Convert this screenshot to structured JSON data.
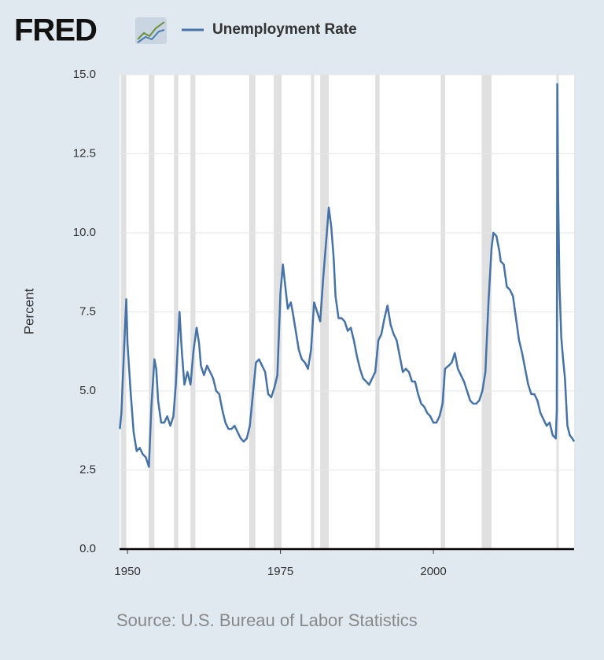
{
  "chart_data": {
    "type": "line",
    "logo": "FRED",
    "y_label": "Percent",
    "source": "Source: U.S. Bureau of Labor Statistics",
    "series": [
      {
        "name": "Unemployment Rate",
        "color": "#4572a7",
        "x": [
          1948.75,
          1949.0,
          1949.5,
          1949.8,
          1950.0,
          1950.5,
          1951.0,
          1951.5,
          1952.0,
          1952.5,
          1953.0,
          1953.5,
          1953.9,
          1954.4,
          1954.7,
          1955.0,
          1955.5,
          1956.0,
          1956.5,
          1957.0,
          1957.5,
          1957.9,
          1958.5,
          1958.9,
          1959.3,
          1959.8,
          1960.3,
          1960.8,
          1961.3,
          1961.7,
          1962.0,
          1962.5,
          1963.0,
          1963.5,
          1964.0,
          1964.5,
          1965.0,
          1965.5,
          1966.0,
          1966.5,
          1967.0,
          1967.5,
          1968.0,
          1968.5,
          1969.0,
          1969.5,
          1970.0,
          1970.5,
          1971.0,
          1971.5,
          1972.0,
          1972.5,
          1973.0,
          1973.5,
          1974.0,
          1974.5,
          1975.0,
          1975.4,
          1975.8,
          1976.2,
          1976.7,
          1977.0,
          1977.5,
          1978.0,
          1978.5,
          1979.0,
          1979.5,
          1980.0,
          1980.5,
          1981.0,
          1981.5,
          1982.0,
          1982.5,
          1982.9,
          1983.3,
          1983.7,
          1984.0,
          1984.5,
          1985.0,
          1985.5,
          1986.0,
          1986.5,
          1987.0,
          1987.5,
          1988.0,
          1988.5,
          1989.0,
          1989.5,
          1990.0,
          1990.5,
          1991.0,
          1991.5,
          1992.0,
          1992.5,
          1993.0,
          1993.5,
          1994.0,
          1994.5,
          1995.0,
          1995.5,
          1996.0,
          1996.5,
          1997.0,
          1997.5,
          1998.0,
          1998.5,
          1999.0,
          1999.5,
          2000.0,
          2000.5,
          2001.0,
          2001.5,
          2001.9,
          2002.5,
          2003.0,
          2003.5,
          2004.0,
          2004.5,
          2005.0,
          2005.5,
          2006.0,
          2006.5,
          2007.0,
          2007.5,
          2008.0,
          2008.5,
          2009.0,
          2009.5,
          2009.8,
          2010.3,
          2010.8,
          2011.0,
          2011.5,
          2012.0,
          2012.5,
          2013.0,
          2013.5,
          2014.0,
          2014.5,
          2015.0,
          2015.5,
          2016.0,
          2016.5,
          2017.0,
          2017.5,
          2018.0,
          2018.5,
          2019.0,
          2019.5,
          2020.0,
          2020.17,
          2020.25,
          2020.4,
          2020.6,
          2020.9,
          2021.2,
          2021.5,
          2021.9,
          2022.3,
          2022.7,
          2023.0
        ],
        "values": [
          3.8,
          4.3,
          6.6,
          7.9,
          6.5,
          5.0,
          3.7,
          3.1,
          3.2,
          3.0,
          2.9,
          2.6,
          4.5,
          6.0,
          5.7,
          4.7,
          4.0,
          4.0,
          4.2,
          3.9,
          4.2,
          5.2,
          7.5,
          6.2,
          5.2,
          5.6,
          5.2,
          6.3,
          7.0,
          6.5,
          5.8,
          5.5,
          5.8,
          5.6,
          5.4,
          5.0,
          4.9,
          4.4,
          4.0,
          3.8,
          3.8,
          3.9,
          3.7,
          3.5,
          3.4,
          3.5,
          3.9,
          4.9,
          5.9,
          6.0,
          5.8,
          5.6,
          4.9,
          4.8,
          5.1,
          5.5,
          8.1,
          9.0,
          8.3,
          7.6,
          7.8,
          7.5,
          6.9,
          6.3,
          6.0,
          5.9,
          5.7,
          6.3,
          7.8,
          7.5,
          7.2,
          8.6,
          9.8,
          10.8,
          10.2,
          9.2,
          8.0,
          7.3,
          7.3,
          7.2,
          6.9,
          7.0,
          6.6,
          6.1,
          5.7,
          5.4,
          5.3,
          5.2,
          5.4,
          5.6,
          6.6,
          6.8,
          7.3,
          7.7,
          7.1,
          6.8,
          6.6,
          6.1,
          5.6,
          5.7,
          5.6,
          5.3,
          5.3,
          4.9,
          4.6,
          4.5,
          4.3,
          4.2,
          4.0,
          4.0,
          4.2,
          4.6,
          5.7,
          5.8,
          5.9,
          6.2,
          5.7,
          5.5,
          5.3,
          5.0,
          4.7,
          4.6,
          4.6,
          4.7,
          5.0,
          5.6,
          7.8,
          9.5,
          10.0,
          9.9,
          9.4,
          9.1,
          9.0,
          8.3,
          8.2,
          8.0,
          7.3,
          6.6,
          6.2,
          5.7,
          5.2,
          4.9,
          4.9,
          4.7,
          4.3,
          4.1,
          3.9,
          4.0,
          3.6,
          3.5,
          4.4,
          14.7,
          11.1,
          8.4,
          6.7,
          6.0,
          5.4,
          3.9,
          3.6,
          3.5,
          3.4
        ]
      }
    ],
    "recessions": [
      [
        1948.9,
        1949.8
      ],
      [
        1953.5,
        1954.4
      ],
      [
        1957.6,
        1958.3
      ],
      [
        1960.3,
        1961.1
      ],
      [
        1969.9,
        1970.9
      ],
      [
        1973.9,
        1975.2
      ],
      [
        1980.0,
        1980.5
      ],
      [
        1981.5,
        1982.9
      ],
      [
        1990.5,
        1991.2
      ],
      [
        2001.2,
        2001.9
      ],
      [
        2007.9,
        2009.5
      ],
      [
        2020.1,
        2020.3
      ]
    ],
    "recession_color": "#e0e0e0",
    "xlim": [
      1948.7,
      2023.0
    ],
    "xticks": [
      1950,
      1975,
      2000
    ],
    "ylim": [
      0,
      15
    ],
    "yticks": [
      {
        "value": 0,
        "label": "0.0"
      },
      2.5,
      {
        "value": 5,
        "label": "5.0"
      },
      7.5,
      {
        "value": 10,
        "label": "10.0"
      },
      12.5,
      {
        "value": 15,
        "label": "15.0"
      }
    ],
    "grid": true
  }
}
